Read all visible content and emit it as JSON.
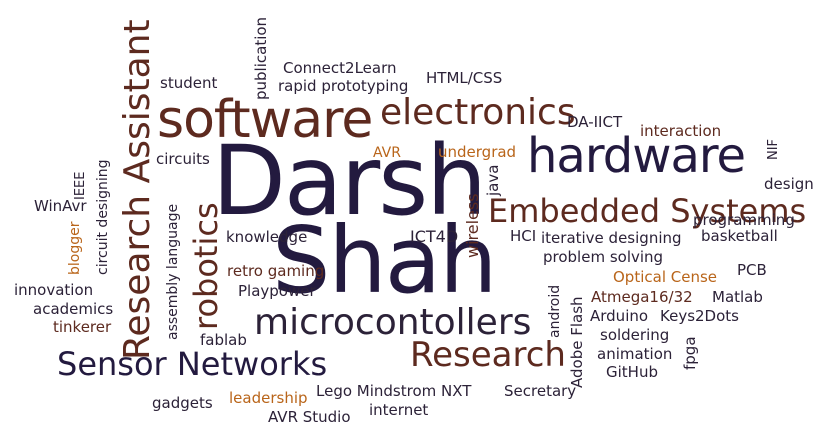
{
  "colors": {
    "navy": "#231a3f",
    "brown": "#5d2a1f",
    "orange": "#b9651a",
    "dark": "#2c2238"
  },
  "words": {
    "darsh": "Darsh",
    "shah": "Shah",
    "software": "software",
    "hardware": "hardware",
    "electronics": "electronics",
    "embedded_systems": "Embedded Systems",
    "research_assistant": "Research Assistant",
    "robotics": "robotics",
    "microcontollers": "microcontollers",
    "sensor_networks": "Sensor Networks",
    "research": "Research",
    "student": "student",
    "publication": "publication",
    "connect2learn": "Connect2Learn",
    "rapid_prototyping": "rapid prototyping",
    "html_css": "HTML/CSS",
    "da_iict": "DA-IICT",
    "interaction": "interaction",
    "nif": "NIF",
    "avr": "AVR",
    "undergrad": "undergrad",
    "circuits": "circuits",
    "ieee": "IEEE",
    "winavr": "WinAvr",
    "circuit_designing": "circuit designing",
    "blogger": "blogger",
    "assembly_language": "assembly language",
    "java": "java",
    "wireless": "wireless",
    "design": "design",
    "programming": "programming",
    "knowledge": "knowledge",
    "ict4d": "ICT4D",
    "hci": "HCI",
    "iterative_designing": "iterative designing",
    "basketball": "basketball",
    "problem_solving": "problem solving",
    "retro_gaming": "retro gaming",
    "optical_cense": "Optical Cense",
    "pcb": "PCB",
    "innovation": "innovation",
    "playpower": "Playpower",
    "atmega": "Atmega16/32",
    "matlab": "Matlab",
    "academics": "academics",
    "android": "android",
    "adobe_flash": "Adobe Flash",
    "arduino": "Arduino",
    "keys2dots": "Keys2Dots",
    "tinkerer": "tinkerer",
    "soldering": "soldering",
    "fablab": "fablab",
    "fpga": "fpga",
    "animation": "animation",
    "github": "GitHub",
    "gadgets": "gadgets",
    "leadership": "leadership",
    "lego": "Lego Mindstrom NXT",
    "secretary": "Secretary",
    "internet": "internet",
    "avr_studio": "AVR Studio"
  }
}
